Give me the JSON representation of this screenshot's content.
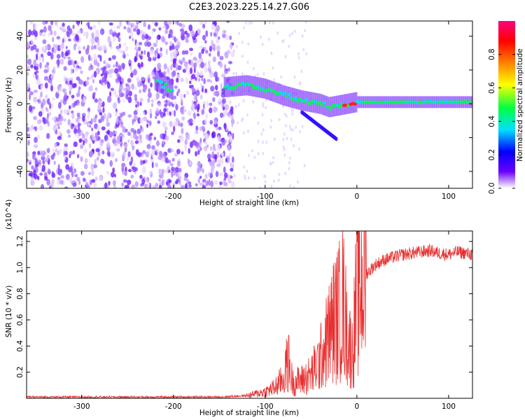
{
  "figure": {
    "title": "C2E3.2023.225.14.27.G06"
  },
  "chart_data": [
    {
      "type": "heatmap",
      "title": "C2E3.2023.225.14.27.G06",
      "xlabel": "Height of straight line (km)",
      "ylabel": "Frequency (Hz)",
      "xlim": [
        -360,
        126
      ],
      "ylim": [
        -50,
        49
      ],
      "xticks": [
        -300,
        -200,
        -100,
        0,
        100
      ],
      "yticks": [
        -40,
        -20,
        0,
        20,
        40
      ],
      "colorbar": {
        "label": "Normalized spectral amplitude",
        "range": [
          0,
          1
        ],
        "ticks": [
          0.0,
          0.2,
          0.4,
          0.6,
          0.8
        ],
        "tick_labels": [
          "0.0",
          "0.2",
          "0.4",
          "0.6",
          "0.8"
        ],
        "colormap": [
          "#ffffff",
          "#6a00ff",
          "#0000ff",
          "#00e0ff",
          "#00ff40",
          "#ffff00",
          "#ff8000",
          "#ff0000",
          "#ff0080"
        ]
      },
      "ridge": {
        "x": [
          -220,
          -210,
          -200,
          -140,
          -120,
          -100,
          -80,
          -60,
          -50,
          -40,
          -30,
          -20,
          -10,
          0,
          20,
          50,
          80,
          100,
          126
        ],
        "y": [
          14,
          11,
          8,
          10,
          11,
          9,
          5,
          2,
          1,
          0,
          -2,
          -1,
          0,
          1,
          1,
          1,
          1,
          1,
          1
        ]
      },
      "noise_region_x": [
        -360,
        -135
      ]
    },
    {
      "type": "line",
      "xlabel": "Height of straight line (km)",
      "ylabel": "SNR (10 * v/v)",
      "y_multiplier": "(x10^4)",
      "xlim": [
        -360,
        126
      ],
      "ylim": [
        0,
        1.28
      ],
      "xticks": [
        -300,
        -200,
        -100,
        0,
        100
      ],
      "yticks": [
        0.2,
        0.4,
        0.6,
        0.8,
        1.0,
        1.2
      ],
      "ytick_labels": [
        "0.2",
        "0.4",
        "0.6",
        "0.8",
        "1.0",
        "1.2"
      ],
      "series": [
        {
          "color": "#e83030",
          "x": [
            -360,
            -300,
            -200,
            -150,
            -120,
            -100,
            -90,
            -80,
            -75,
            -70,
            -60,
            -50,
            -40,
            -30,
            -25,
            -20,
            -15,
            -10,
            -5,
            0,
            5,
            10,
            20,
            30,
            40,
            50,
            60,
            70,
            80,
            90,
            100,
            110,
            126
          ],
          "y": [
            0.01,
            0.01,
            0.01,
            0.01,
            0.02,
            0.05,
            0.08,
            0.15,
            0.3,
            0.12,
            0.14,
            0.18,
            0.3,
            0.5,
            0.6,
            0.65,
            0.75,
            0.45,
            0.35,
            0.8,
            0.9,
            0.95,
            1.02,
            1.06,
            1.08,
            1.1,
            1.11,
            1.12,
            1.13,
            1.11,
            1.1,
            1.12,
            1.1
          ]
        }
      ]
    }
  ]
}
